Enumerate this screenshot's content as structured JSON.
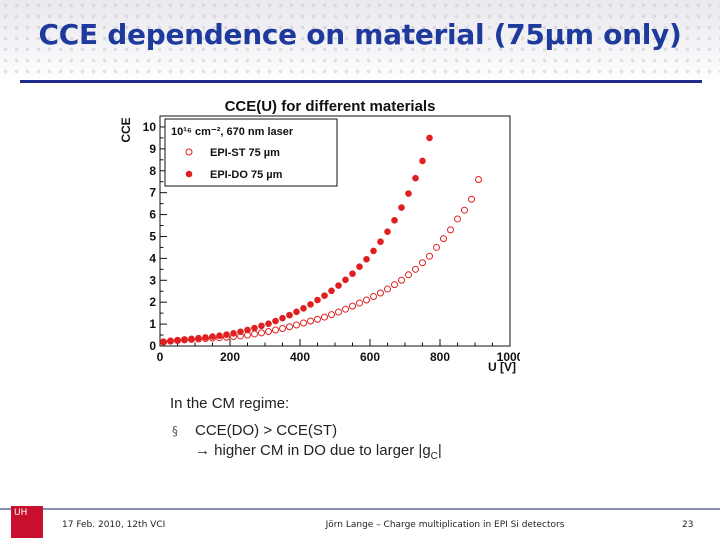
{
  "slide": {
    "title": "CCE dependence on material (75µm only)",
    "notes": {
      "intro": "In the CM regime:",
      "bullet_symbol": "§",
      "line1": "CCE(DO) > CCE(ST)",
      "line2": "→ higher CM in DO due to larger |g",
      "line2_sub": "C",
      "line2_end": "|"
    },
    "footer": {
      "date": "17 Feb. 2010,  12th VCI",
      "author": "Jörn Lange – Charge multiplication in EPI Si detectors",
      "page": "23",
      "logo_text": "UH"
    }
  },
  "colors": {
    "title": "#1e3a9c",
    "series_do": "#e02020",
    "series_st": "#e02020",
    "rule": "#1f2a8a"
  },
  "chart_data": {
    "type": "scatter",
    "title": "CCE(U) for different materials",
    "xlabel": "U [V]",
    "ylabel": "CCE",
    "xlim": [
      0,
      1000
    ],
    "ylim": [
      0,
      10.5
    ],
    "xticks": [
      0,
      200,
      400,
      600,
      800,
      1000
    ],
    "yticks": [
      0,
      1,
      2,
      3,
      4,
      5,
      6,
      7,
      8,
      9,
      10
    ],
    "legend_header": "10¹⁶ cm⁻², 670 nm laser",
    "legend_position": "top-left",
    "series": [
      {
        "name": "EPI-ST 75 µm",
        "marker": "open-circle",
        "x": [
          10,
          30,
          50,
          70,
          90,
          110,
          130,
          150,
          170,
          190,
          210,
          230,
          250,
          270,
          290,
          310,
          330,
          350,
          370,
          390,
          410,
          430,
          450,
          470,
          490,
          510,
          530,
          550,
          570,
          590,
          610,
          630,
          650,
          670,
          690,
          710,
          730,
          750,
          770,
          790,
          810,
          830,
          850,
          870,
          890,
          910
        ],
        "y": [
          0.18,
          0.22,
          0.25,
          0.28,
          0.3,
          0.32,
          0.34,
          0.36,
          0.38,
          0.4,
          0.43,
          0.46,
          0.5,
          0.55,
          0.6,
          0.66,
          0.73,
          0.8,
          0.88,
          0.96,
          1.05,
          1.14,
          1.22,
          1.32,
          1.43,
          1.55,
          1.68,
          1.82,
          1.96,
          2.1,
          2.26,
          2.42,
          2.6,
          2.8,
          3.0,
          3.25,
          3.5,
          3.8,
          4.1,
          4.5,
          4.9,
          5.3,
          5.8,
          6.2,
          6.7,
          7.6
        ]
      },
      {
        "name": "EPI-DO 75 µm",
        "marker": "filled-circle",
        "x": [
          10,
          30,
          50,
          70,
          90,
          110,
          130,
          150,
          170,
          190,
          210,
          230,
          250,
          270,
          290,
          310,
          330,
          350,
          370,
          390,
          410,
          430,
          450,
          470,
          490,
          510,
          530,
          550,
          570,
          590,
          610,
          630,
          650,
          670,
          690,
          710,
          730,
          750,
          770
        ],
        "y": [
          0.2,
          0.24,
          0.27,
          0.3,
          0.33,
          0.36,
          0.39,
          0.43,
          0.47,
          0.52,
          0.58,
          0.65,
          0.73,
          0.82,
          0.92,
          1.02,
          1.14,
          1.27,
          1.41,
          1.56,
          1.72,
          1.9,
          2.1,
          2.3,
          2.52,
          2.76,
          3.02,
          3.3,
          3.62,
          3.96,
          4.34,
          4.76,
          5.22,
          5.74,
          6.32,
          6.96,
          7.66,
          8.45,
          9.5
        ]
      }
    ]
  }
}
